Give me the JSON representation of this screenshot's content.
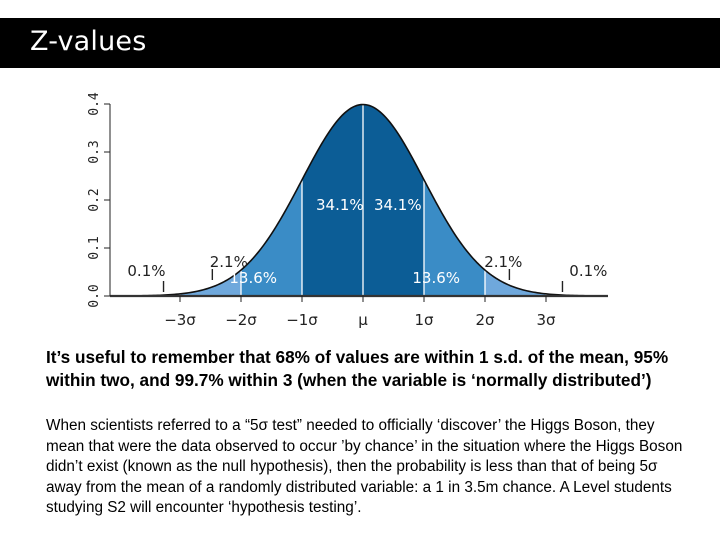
{
  "slide": {
    "title": "Z-values",
    "paragraph_bold": "It’s useful to remember that 68% of values are within 1 s.d. of the mean, 95% within two, and 99.7% within 3 (when the variable is ‘normally distributed’)",
    "paragraph_body": "When scientists referred to a “5σ test” needed to officially ‘discover’ the Higgs Boson, they mean that were the data observed to occur ’by chance’ in the situation where the Higgs Boson didn’t exist (known as the null hypothesis), then the probability is less than that of being 5σ away from the mean of a randomly distributed variable: a 1 in 3.5m chance. A Level students studying S2 will encounter ‘hypothesis testing’."
  },
  "chart_data": {
    "type": "area",
    "title": "",
    "xlabel": "",
    "ylabel": "",
    "x_tick_labels": [
      "−3σ",
      "−2σ",
      "−1σ",
      "μ",
      "1σ",
      "2σ",
      "3σ"
    ],
    "x_tick_values": [
      -3,
      -2,
      -1,
      0,
      1,
      2,
      3
    ],
    "y_tick_labels": [
      "0.0",
      "0.1",
      "0.2",
      "0.3",
      "0.4"
    ],
    "y_tick_values": [
      0,
      0.1,
      0.2,
      0.3,
      0.4
    ],
    "xlim": [
      -4,
      4.7
    ],
    "ylim": [
      0,
      0.4
    ],
    "grid": false,
    "regions": [
      {
        "from": -3,
        "to": -2,
        "label": "2.1%",
        "percent": 2.1,
        "color": "#6fa8dc"
      },
      {
        "from": -2,
        "to": -1,
        "label": "13.6%",
        "percent": 13.6,
        "color": "#3a8cc6"
      },
      {
        "from": -1,
        "to": 0,
        "label": "34.1%",
        "percent": 34.1,
        "color": "#0c5d96"
      },
      {
        "from": 0,
        "to": 1,
        "label": "34.1%",
        "percent": 34.1,
        "color": "#0c5d96"
      },
      {
        "from": 1,
        "to": 2,
        "label": "13.6%",
        "percent": 13.6,
        "color": "#3a8cc6"
      },
      {
        "from": 2,
        "to": 3,
        "label": "2.1%",
        "percent": 2.1,
        "color": "#6fa8dc"
      }
    ],
    "tail_labels": [
      {
        "side": "left",
        "label": "0.1%",
        "percent": 0.1
      },
      {
        "side": "right",
        "label": "0.1%",
        "percent": 0.1
      }
    ],
    "curve": "standard normal density"
  }
}
